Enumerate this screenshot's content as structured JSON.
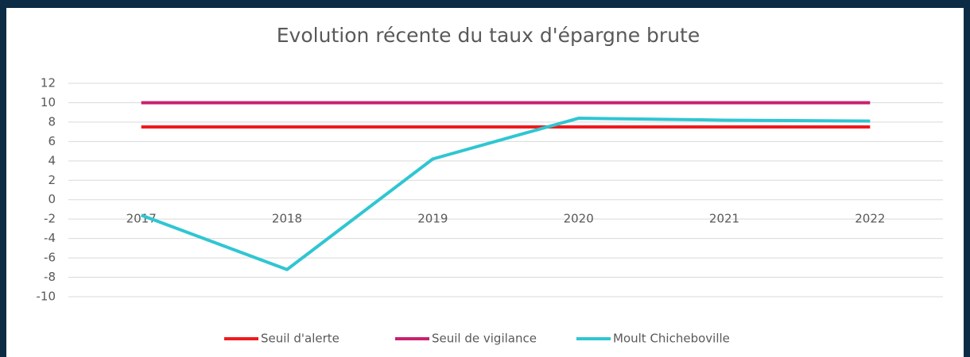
{
  "chart_data": {
    "type": "line",
    "title": "Evolution récente du taux d'épargne brute",
    "categories": [
      "2017",
      "2018",
      "2019",
      "2020",
      "2021",
      "2022"
    ],
    "series": [
      {
        "name": "Seuil d'alerte",
        "color": "#f01a1e",
        "values": [
          7.5,
          7.5,
          7.5,
          7.5,
          7.5,
          7.5
        ]
      },
      {
        "name": "Seuil de vigilance",
        "color": "#c8216f",
        "values": [
          10,
          10,
          10,
          10,
          10,
          10
        ]
      },
      {
        "name": "Moult Chicheboville",
        "color": "#2fc6d2",
        "values": [
          -1.6,
          -7.2,
          4.2,
          8.4,
          8.2,
          8.1
        ]
      }
    ],
    "ylim": [
      -10,
      12
    ],
    "yticks": [
      -10,
      -8,
      -6,
      -4,
      -2,
      0,
      2,
      4,
      6,
      8,
      10,
      12
    ],
    "grid": true,
    "legend": "bottom"
  }
}
